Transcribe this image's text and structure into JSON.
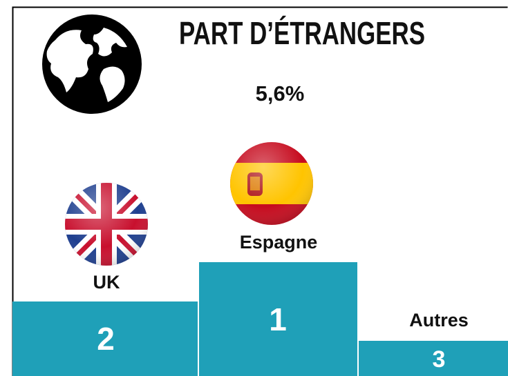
{
  "header": {
    "title": "PART D’ÉTRANGERS",
    "value": "5,6%"
  },
  "podium": [
    {
      "label": "UK",
      "rank": "2"
    },
    {
      "label": "Espagne",
      "rank": "1"
    },
    {
      "label": "Autres",
      "rank": "3"
    }
  ]
}
